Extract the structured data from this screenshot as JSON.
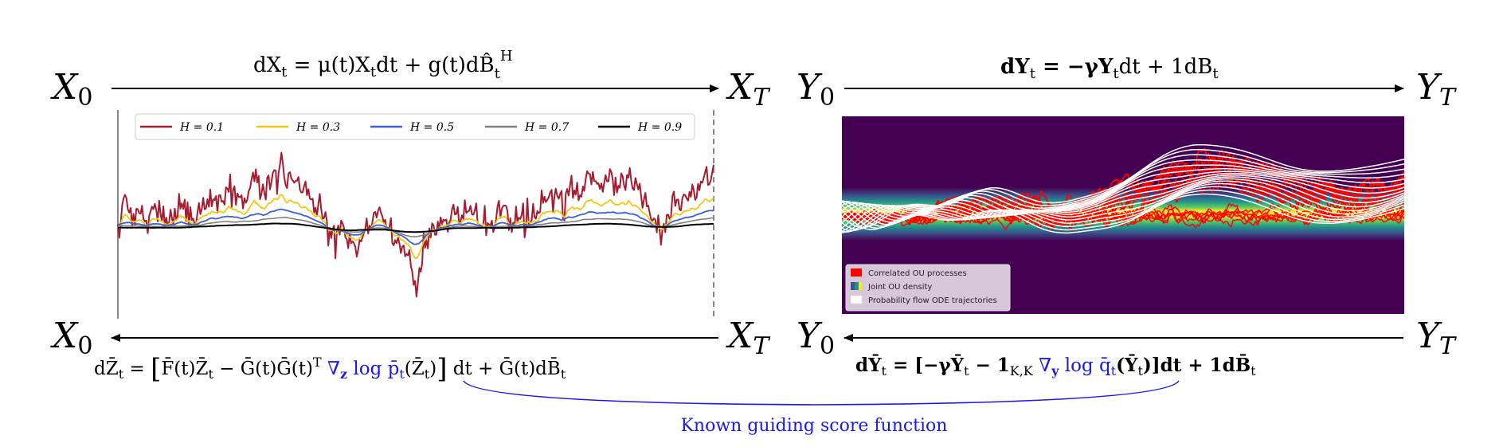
{
  "colors": {
    "arrow": "#000000",
    "score_blue": "#1a1ae6",
    "density_bg": "#440154",
    "ou_red": "#ff0000",
    "flow_white": "#ffffff",
    "h01": "#a51c30",
    "h03": "#f2c912",
    "h05": "#3a5fd9",
    "h07": "#808080",
    "h09": "#000000"
  },
  "left": {
    "start": "X",
    "start_sub": "0",
    "end": "X",
    "end_sub": "T",
    "forward_eq": {
      "p1": "dX",
      "p1_sub": "t",
      "p2": " = μ(t)X",
      "p2_sub": "t",
      "p3": "dt + g(t)dB̂",
      "p3_sub": "t",
      "p3_sup": "H"
    },
    "reverse_eq": {
      "lhs": "dZ̄",
      "lhs_sub": "t",
      "bracket_open": "[",
      "term1": "F̄(t)Z̄",
      "term1_sub": "t",
      "minus": " − Ḡ(t)Ḡ(t)",
      "sup_T": "T",
      "nabla": "∇",
      "nabla_sub": "z",
      "logp": " log p̄",
      "logp_sub": "t",
      "logp_arg": "(Z̄",
      "logp_arg_sub": "t",
      "logp_close": ")",
      "bracket_close": "]",
      "tail": " dt + Ḡ(t)dB̄",
      "tail_sub": "t"
    },
    "legend": [
      {
        "label": "H = 0.1"
      },
      {
        "label": "H = 0.3"
      },
      {
        "label": "H = 0.5"
      },
      {
        "label": "H = 0.7"
      },
      {
        "label": "H = 0.9"
      }
    ]
  },
  "right": {
    "start": "Y",
    "start_sub": "0",
    "end": "Y",
    "end_sub": "T",
    "forward_eq": {
      "p1": "dY",
      "p1_sub": "t",
      "p2": " = −γY",
      "p2_sub": "t",
      "p3": "dt + 1dB",
      "p3_sub": "t"
    },
    "reverse_eq": {
      "lhs": "dȲ",
      "lhs_sub": "t",
      "mid": " = [−γȲ",
      "mid_sub": "t",
      "minus": " − 1",
      "minus_sub": "K,K",
      "nabla": "∇",
      "nabla_sub": "y",
      "logq": " log q̄",
      "logq_sub": "t",
      "arg": "(Ȳ",
      "arg_sub": "t",
      "tail": ")]dt + 1dB̄",
      "tail_sub": "t"
    },
    "legend": [
      {
        "label": "Correlated OU processes"
      },
      {
        "label": "Joint OU density"
      },
      {
        "label": "Probability flow ODE trajectories"
      }
    ]
  },
  "annotation": "Known guiding score function",
  "chart_data": [
    {
      "type": "line",
      "title": "",
      "xlabel": "",
      "ylabel": "",
      "series": [
        {
          "name": "H = 0.1"
        },
        {
          "name": "H = 0.3"
        },
        {
          "name": "H = 0.5"
        },
        {
          "name": "H = 0.7"
        },
        {
          "name": "H = 0.9"
        }
      ]
    },
    {
      "type": "line",
      "title": "",
      "series": [
        {
          "name": "Correlated OU processes"
        },
        {
          "name": "Joint OU density"
        },
        {
          "name": "Probability flow ODE trajectories"
        }
      ]
    }
  ]
}
